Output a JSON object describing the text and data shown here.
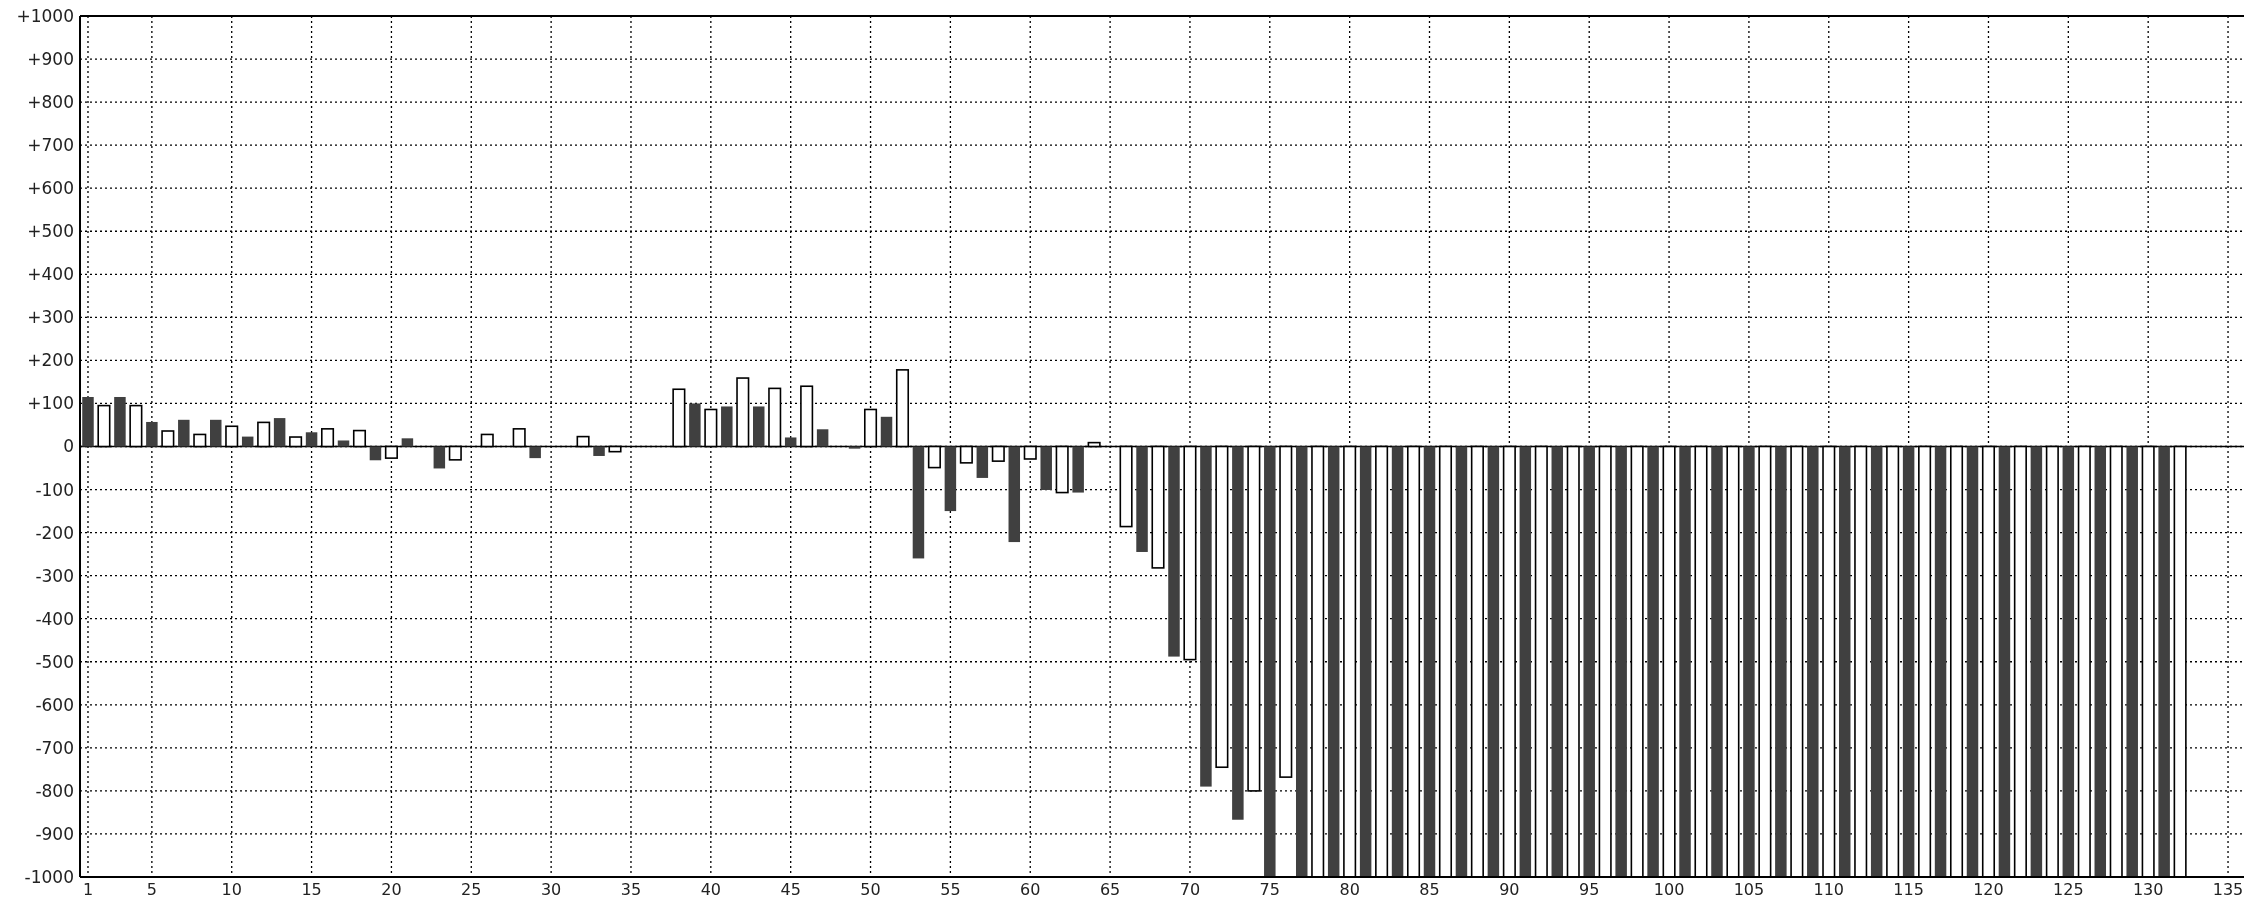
{
  "chart_data": {
    "type": "bar",
    "xlim": [
      0.5,
      136
    ],
    "ylim": [
      -1000,
      1000
    ],
    "xticks": [
      1,
      5,
      10,
      15,
      20,
      25,
      30,
      35,
      40,
      45,
      50,
      55,
      60,
      65,
      70,
      75,
      80,
      85,
      90,
      95,
      100,
      105,
      110,
      115,
      120,
      125,
      130,
      135
    ],
    "yticks": [
      {
        "value": 1000,
        "label": "+1000"
      },
      {
        "value": 900,
        "label": "+900"
      },
      {
        "value": 800,
        "label": "+800"
      },
      {
        "value": 700,
        "label": "+700"
      },
      {
        "value": 600,
        "label": "+600"
      },
      {
        "value": 500,
        "label": "+500"
      },
      {
        "value": 400,
        "label": "+400"
      },
      {
        "value": 300,
        "label": "+300"
      },
      {
        "value": 200,
        "label": "+200"
      },
      {
        "value": 100,
        "label": "+100"
      },
      0,
      -100,
      -200,
      -300,
      -400,
      -500,
      -600,
      -700,
      -800,
      -900,
      -1000
    ],
    "grid": true,
    "series": [
      {
        "color": "#404040",
        "x": [
          1,
          3,
          5,
          7,
          9,
          11,
          13,
          15,
          17,
          19,
          21,
          23,
          25,
          27,
          29,
          31,
          33,
          35,
          37,
          39,
          41,
          43,
          45,
          47,
          49,
          51,
          53,
          55,
          57,
          59,
          61,
          63,
          65,
          67,
          69,
          71,
          73,
          75,
          77,
          79,
          81,
          83,
          85,
          87,
          89,
          91,
          93,
          95,
          97,
          99,
          101,
          103,
          105,
          107,
          109,
          111,
          113,
          115,
          117,
          119,
          121,
          123,
          125,
          127,
          129,
          131
        ],
        "values": [
          115,
          115,
          57,
          62,
          62,
          23,
          66,
          33,
          14,
          -32,
          19,
          -51,
          0,
          0,
          -27,
          0,
          -22,
          0,
          0,
          100,
          93,
          93,
          21,
          40,
          -5,
          69,
          -260,
          -150,
          -73,
          -222,
          -101,
          -107,
          0,
          -245,
          -488,
          -790,
          -867,
          -1000,
          -1000,
          -1000,
          -1000,
          -1000,
          -1000,
          -1000,
          -1000,
          -1000,
          -1000,
          -1000,
          -1000,
          -1000,
          -1000,
          -1000,
          -1000,
          -1000,
          -1000,
          -1000,
          -1000,
          -1000,
          -1000,
          -1000,
          -1000,
          -1000,
          -1000,
          -1000,
          -1000,
          -1000
        ]
      },
      {
        "color": "#ffffff",
        "x": [
          2,
          4,
          6,
          8,
          10,
          12,
          14,
          16,
          18,
          20,
          22,
          24,
          26,
          28,
          30,
          32,
          34,
          36,
          38,
          40,
          42,
          44,
          46,
          48,
          50,
          52,
          54,
          56,
          58,
          60,
          62,
          64,
          66,
          68,
          70,
          72,
          74,
          76,
          78,
          80,
          82,
          84,
          86,
          88,
          90,
          92,
          94,
          96,
          98,
          100,
          102,
          104,
          106,
          108,
          110,
          112,
          114,
          116,
          118,
          120,
          122,
          124,
          126,
          128,
          130,
          132
        ],
        "values": [
          95,
          95,
          36,
          28,
          47,
          56,
          22,
          41,
          37,
          -27,
          0,
          -31,
          28,
          41,
          0,
          23,
          -12,
          0,
          133,
          86,
          159,
          135,
          140,
          0,
          86,
          178,
          -49,
          -38,
          -34,
          -29,
          -107,
          9,
          -186,
          -282,
          -495,
          -745,
          -800,
          -768,
          -1000,
          -1000,
          -1000,
          -1000,
          -1000,
          -1000,
          -1000,
          -1000,
          -1000,
          -1000,
          -1000,
          -1000,
          -1000,
          -1000,
          -1000,
          -1000,
          -1000,
          -1000,
          -1000,
          -1000,
          -1000,
          -1000,
          -1000,
          -1000,
          -1000,
          -1000,
          -1000,
          -1000
        ]
      }
    ]
  }
}
